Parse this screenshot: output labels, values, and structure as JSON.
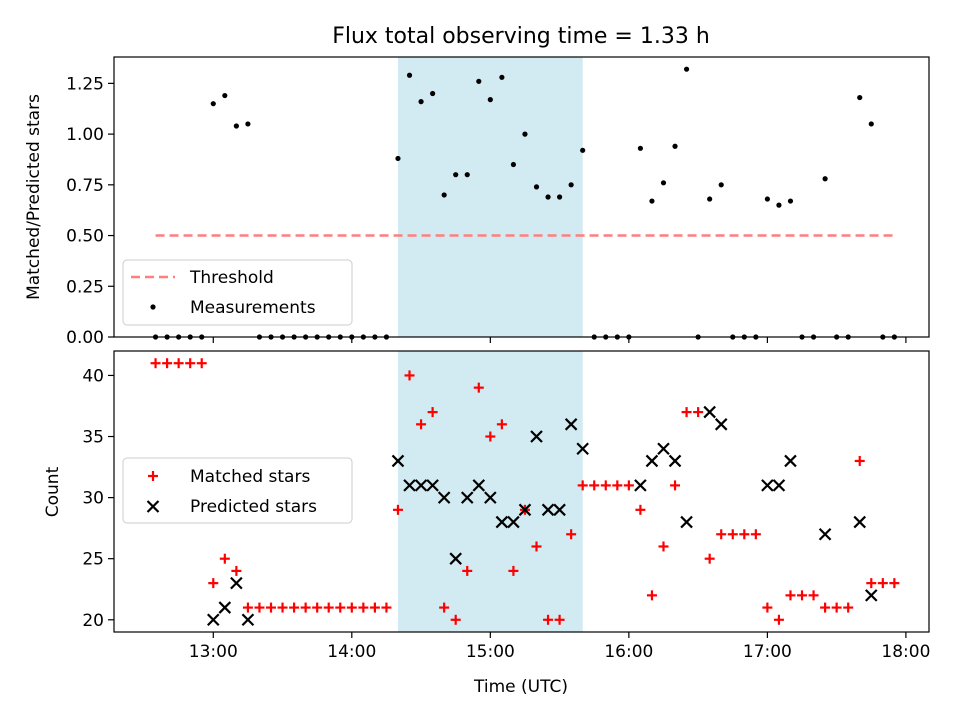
{
  "figure": {
    "title": "Flux total observing time = 1.33 h"
  },
  "chart_data": [
    {
      "type": "scatter",
      "ylabel": "Matched/Predicted stars",
      "xlim": [
        "12:17",
        "18:10"
      ],
      "ylim": [
        0,
        1.38
      ],
      "y_ticks": [
        0.0,
        0.25,
        0.5,
        0.75,
        1.0,
        1.25
      ],
      "y_tick_labels": [
        "0.00",
        "0.25",
        "0.50",
        "0.75",
        "1.00",
        "1.25"
      ],
      "shaded_span": {
        "from": "14:20",
        "to": "15:40",
        "color": "#add8e6"
      },
      "threshold": {
        "name": "Threshold",
        "y": 0.5,
        "from": "12:35",
        "to": "17:55",
        "color": "#ff7f7f"
      },
      "series": [
        {
          "name": "Measurements",
          "color": "#000000",
          "points": [
            [
              "12:35",
              0
            ],
            [
              "12:40",
              0
            ],
            [
              "12:45",
              0
            ],
            [
              "12:50",
              0
            ],
            [
              "12:55",
              0
            ],
            [
              "13:00",
              1.15
            ],
            [
              "13:05",
              1.19
            ],
            [
              "13:10",
              1.04
            ],
            [
              "13:15",
              1.05
            ],
            [
              "13:20",
              0
            ],
            [
              "13:25",
              0
            ],
            [
              "13:30",
              0
            ],
            [
              "13:35",
              0
            ],
            [
              "13:40",
              0
            ],
            [
              "13:45",
              0
            ],
            [
              "13:50",
              0
            ],
            [
              "13:55",
              0
            ],
            [
              "14:00",
              0
            ],
            [
              "14:05",
              0
            ],
            [
              "14:10",
              0
            ],
            [
              "14:15",
              0
            ],
            [
              "14:20",
              0.88
            ],
            [
              "14:25",
              1.29
            ],
            [
              "14:30",
              1.16
            ],
            [
              "14:35",
              1.2
            ],
            [
              "14:40",
              0.7
            ],
            [
              "14:45",
              0.8
            ],
            [
              "14:50",
              0.8
            ],
            [
              "14:55",
              1.26
            ],
            [
              "15:00",
              1.17
            ],
            [
              "15:05",
              1.28
            ],
            [
              "15:10",
              0.85
            ],
            [
              "15:15",
              1.0
            ],
            [
              "15:20",
              0.74
            ],
            [
              "15:25",
              0.69
            ],
            [
              "15:30",
              0.69
            ],
            [
              "15:35",
              0.75
            ],
            [
              "15:40",
              0.92
            ],
            [
              "15:45",
              0
            ],
            [
              "15:50",
              0
            ],
            [
              "15:55",
              0
            ],
            [
              "16:00",
              0
            ],
            [
              "16:05",
              0.93
            ],
            [
              "16:10",
              0.67
            ],
            [
              "16:15",
              0.76
            ],
            [
              "16:20",
              0.94
            ],
            [
              "16:25",
              1.32
            ],
            [
              "16:30",
              0
            ],
            [
              "16:35",
              0.68
            ],
            [
              "16:40",
              0.75
            ],
            [
              "16:45",
              0
            ],
            [
              "16:50",
              0
            ],
            [
              "16:55",
              0
            ],
            [
              "17:00",
              0.68
            ],
            [
              "17:05",
              0.65
            ],
            [
              "17:10",
              0.67
            ],
            [
              "17:15",
              0
            ],
            [
              "17:20",
              0
            ],
            [
              "17:25",
              0.78
            ],
            [
              "17:30",
              0
            ],
            [
              "17:35",
              0
            ],
            [
              "17:40",
              1.18
            ],
            [
              "17:45",
              1.05
            ],
            [
              "17:50",
              0
            ],
            [
              "17:55",
              0
            ]
          ]
        }
      ],
      "legend": {
        "placement": "lower-left",
        "entries": [
          "Threshold",
          "Measurements"
        ]
      }
    },
    {
      "type": "scatter",
      "xlabel": "Time (UTC)",
      "ylabel": "Count",
      "xlim": [
        "12:17",
        "18:10"
      ],
      "ylim": [
        19,
        42
      ],
      "x_tick_labels": [
        "13:00",
        "14:00",
        "15:00",
        "16:00",
        "17:00",
        "18:00"
      ],
      "y_ticks": [
        20,
        25,
        30,
        35,
        40
      ],
      "y_tick_labels": [
        "20",
        "25",
        "30",
        "35",
        "40"
      ],
      "shaded_span": {
        "from": "14:20",
        "to": "15:40",
        "color": "#add8e6"
      },
      "series": [
        {
          "name": "Matched stars",
          "marker": "plus",
          "color": "#ff0000",
          "points": [
            [
              "12:35",
              41
            ],
            [
              "12:40",
              41
            ],
            [
              "12:45",
              41
            ],
            [
              "12:50",
              41
            ],
            [
              "12:55",
              41
            ],
            [
              "13:00",
              23
            ],
            [
              "13:05",
              25
            ],
            [
              "13:10",
              24
            ],
            [
              "13:15",
              21
            ],
            [
              "13:20",
              21
            ],
            [
              "13:25",
              21
            ],
            [
              "13:30",
              21
            ],
            [
              "13:35",
              21
            ],
            [
              "13:40",
              21
            ],
            [
              "13:45",
              21
            ],
            [
              "13:50",
              21
            ],
            [
              "13:55",
              21
            ],
            [
              "14:00",
              21
            ],
            [
              "14:05",
              21
            ],
            [
              "14:10",
              21
            ],
            [
              "14:15",
              21
            ],
            [
              "14:20",
              29
            ],
            [
              "14:25",
              40
            ],
            [
              "14:30",
              36
            ],
            [
              "14:35",
              37
            ],
            [
              "14:40",
              21
            ],
            [
              "14:45",
              20
            ],
            [
              "14:50",
              24
            ],
            [
              "14:55",
              39
            ],
            [
              "15:00",
              35
            ],
            [
              "15:05",
              36
            ],
            [
              "15:10",
              24
            ],
            [
              "15:15",
              29
            ],
            [
              "15:20",
              26
            ],
            [
              "15:25",
              20
            ],
            [
              "15:30",
              20
            ],
            [
              "15:35",
              27
            ],
            [
              "15:40",
              31
            ],
            [
              "15:45",
              31
            ],
            [
              "15:50",
              31
            ],
            [
              "15:55",
              31
            ],
            [
              "16:00",
              31
            ],
            [
              "16:05",
              29
            ],
            [
              "16:10",
              22
            ],
            [
              "16:15",
              26
            ],
            [
              "16:20",
              31
            ],
            [
              "16:25",
              37
            ],
            [
              "16:30",
              37
            ],
            [
              "16:35",
              25
            ],
            [
              "16:40",
              27
            ],
            [
              "16:45",
              27
            ],
            [
              "16:50",
              27
            ],
            [
              "16:55",
              27
            ],
            [
              "17:00",
              21
            ],
            [
              "17:05",
              20
            ],
            [
              "17:10",
              22
            ],
            [
              "17:15",
              22
            ],
            [
              "17:20",
              22
            ],
            [
              "17:25",
              21
            ],
            [
              "17:30",
              21
            ],
            [
              "17:35",
              21
            ],
            [
              "17:40",
              33
            ],
            [
              "17:45",
              23
            ],
            [
              "17:50",
              23
            ],
            [
              "17:55",
              23
            ]
          ]
        },
        {
          "name": "Predicted stars",
          "marker": "x",
          "color": "#000000",
          "points": [
            [
              "13:00",
              20
            ],
            [
              "13:05",
              21
            ],
            [
              "13:10",
              23
            ],
            [
              "13:15",
              20
            ],
            [
              "14:20",
              33
            ],
            [
              "14:25",
              31
            ],
            [
              "14:30",
              31
            ],
            [
              "14:35",
              31
            ],
            [
              "14:40",
              30
            ],
            [
              "14:45",
              25
            ],
            [
              "14:50",
              30
            ],
            [
              "14:55",
              31
            ],
            [
              "15:00",
              30
            ],
            [
              "15:05",
              28
            ],
            [
              "15:10",
              28
            ],
            [
              "15:15",
              29
            ],
            [
              "15:20",
              35
            ],
            [
              "15:25",
              29
            ],
            [
              "15:30",
              29
            ],
            [
              "15:35",
              36
            ],
            [
              "15:40",
              34
            ],
            [
              "16:05",
              31
            ],
            [
              "16:10",
              33
            ],
            [
              "16:15",
              34
            ],
            [
              "16:20",
              33
            ],
            [
              "16:25",
              28
            ],
            [
              "16:35",
              37
            ],
            [
              "16:40",
              36
            ],
            [
              "17:00",
              31
            ],
            [
              "17:05",
              31
            ],
            [
              "17:10",
              33
            ],
            [
              "17:25",
              27
            ],
            [
              "17:40",
              28
            ],
            [
              "17:45",
              22
            ]
          ]
        }
      ],
      "legend": {
        "placement": "center-left",
        "entries": [
          "Matched stars",
          "Predicted stars"
        ]
      }
    }
  ]
}
